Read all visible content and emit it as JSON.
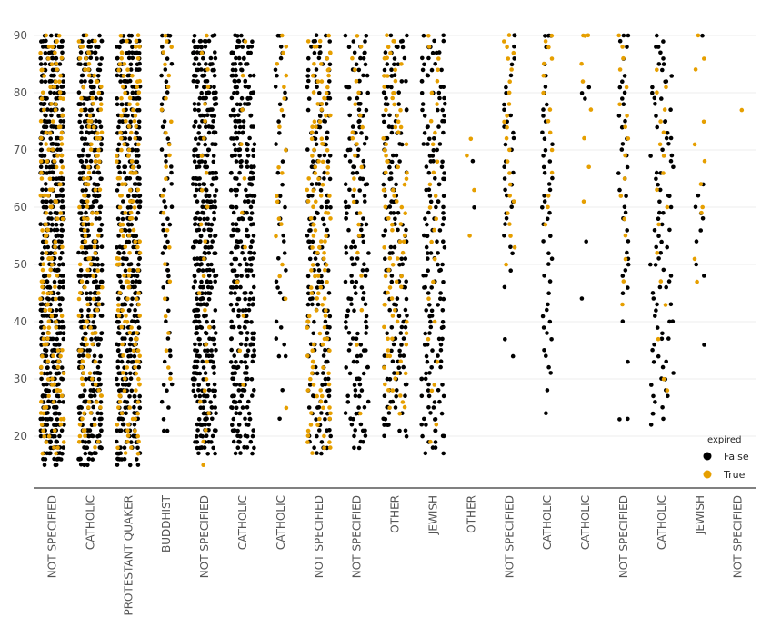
{
  "chart_data": {
    "type": "scatter",
    "subtype": "strip",
    "title": "",
    "xlabel": "",
    "ylabel": "",
    "ylim": [
      11,
      93
    ],
    "yticks": [
      20,
      30,
      40,
      50,
      60,
      70,
      80,
      90
    ],
    "grid": "horizontal",
    "categories": [
      "NOT SPECIFIED",
      "CATHOLIC",
      "PROTESTANT QUAKER",
      "BUDDHIST",
      "NOT SPECIFIED",
      "CATHOLIC",
      "CATHOLIC",
      "NOT SPECIFIED",
      "NOT SPECIFIED",
      "OTHER",
      "JEWISH",
      "OTHER",
      "NOT SPECIFIED",
      "CATHOLIC",
      "CATHOLIC",
      "NOT SPECIFIED",
      "CATHOLIC",
      "JEWISH",
      "NOT SPECIFIED"
    ],
    "legend": {
      "title": "expired",
      "position": "bottom-right",
      "entries": [
        {
          "label": "False",
          "color": "#000000"
        },
        {
          "label": "True",
          "color": "#E69F00"
        }
      ]
    },
    "series": [
      {
        "name": "False",
        "color": "#000000",
        "points_by_category": [
          {
            "range": [
              15,
              90
            ],
            "count": 520
          },
          {
            "range": [
              15,
              90
            ],
            "count": 440
          },
          {
            "range": [
              15,
              90
            ],
            "count": 420
          },
          {
            "values": [
              21,
              21,
              23,
              25,
              26,
              28,
              29,
              29,
              31,
              33,
              34,
              35,
              37,
              38,
              40,
              42,
              44,
              46,
              47,
              48,
              49,
              49,
              50,
              52,
              53,
              53,
              54,
              55,
              56,
              57,
              57,
              58,
              59,
              60,
              60,
              61,
              62,
              63,
              64,
              65,
              66,
              67,
              68,
              69,
              70,
              71,
              72,
              73,
              74,
              75,
              77,
              78,
              79,
              80,
              81,
              82,
              83,
              84,
              85,
              86,
              87,
              88,
              89,
              90,
              90,
              90
            ]
          },
          {
            "range": [
              17,
              90
            ],
            "count": 420
          },
          {
            "range": [
              17,
              90
            ],
            "count": 360
          },
          {
            "values": [
              23,
              28,
              34,
              34,
              36,
              37,
              39,
              40,
              44,
              45,
              46,
              47,
              49,
              51,
              52,
              54,
              55,
              57,
              58,
              60,
              61,
              62,
              64,
              66,
              68,
              70,
              71,
              73,
              75,
              76,
              78,
              79,
              80,
              81,
              83,
              84,
              86,
              87,
              88,
              90,
              90
            ]
          },
          {
            "range": [
              17,
              90
            ],
            "count": 200
          },
          {
            "range": [
              18,
              90
            ],
            "count": 170
          },
          {
            "range": [
              20,
              90
            ],
            "count": 170
          },
          {
            "range": [
              17,
              90
            ],
            "count": 170
          },
          {
            "values": [
              60,
              68
            ]
          },
          {
            "values": [
              34,
              37,
              46,
              49,
              52,
              53,
              55,
              57,
              58,
              59,
              60,
              61,
              62,
              63,
              64,
              65,
              66,
              67,
              68,
              70,
              71,
              72,
              73,
              74,
              75,
              76,
              77,
              78,
              80,
              81,
              83,
              85,
              86,
              88,
              90,
              90,
              90
            ]
          },
          {
            "values": [
              24,
              28,
              31,
              32,
              34,
              35,
              37,
              38,
              39,
              40,
              41,
              42,
              43,
              45,
              47,
              48,
              50,
              51,
              52,
              54,
              55,
              57,
              58,
              59,
              60,
              61,
              62,
              63,
              64,
              65,
              66,
              67,
              68,
              69,
              70,
              71,
              72,
              73,
              75,
              76,
              77,
              78,
              80,
              81,
              83,
              85,
              88,
              90,
              90,
              90,
              90
            ]
          },
          {
            "values": [
              44,
              54,
              79,
              80,
              81
            ]
          },
          {
            "values": [
              23,
              23,
              33,
              40,
              45,
              46,
              48,
              49,
              50,
              51,
              52,
              54,
              56,
              58,
              58,
              59,
              60,
              62,
              63,
              65,
              66,
              67,
              69,
              70,
              71,
              72,
              74,
              75,
              76,
              78,
              79,
              80,
              81,
              82,
              83,
              86,
              88,
              89,
              90,
              90
            ]
          },
          {
            "range": [
              22,
              90
            ],
            "count": 90
          },
          {
            "values": [
              36,
              48,
              50,
              54,
              56,
              58,
              59,
              60,
              62,
              64,
              90
            ]
          },
          {
            "values": []
          }
        ]
      },
      {
        "name": "True",
        "color": "#E69F00",
        "points_by_category": [
          {
            "range": [
              17,
              90
            ],
            "count": 160
          },
          {
            "range": [
              18,
              90
            ],
            "count": 130
          },
          {
            "range": [
              17,
              90
            ],
            "count": 150
          },
          {
            "values": [
              30,
              32,
              35,
              38,
              41,
              44,
              47,
              50,
              53,
              56,
              59,
              62,
              65,
              67,
              69,
              71,
              73,
              75,
              77,
              79,
              81,
              83,
              85,
              87,
              88,
              89,
              90
            ]
          },
          {
            "values": [
              15,
              19,
              21,
              24,
              26,
              28,
              30,
              33,
              36,
              39,
              42,
              45,
              48,
              51,
              54,
              57,
              60,
              63,
              66,
              69,
              72,
              75,
              78,
              81,
              84,
              87,
              90
            ]
          },
          {
            "values": [
              29,
              35,
              41,
              47,
              53,
              59,
              65,
              71,
              77,
              83,
              89
            ]
          },
          {
            "values": [
              25,
              44,
              48,
              50,
              55,
              57,
              58,
              61,
              62,
              66,
              67,
              70,
              74,
              77,
              79,
              81,
              83,
              85,
              87,
              88,
              90
            ]
          },
          {
            "range": [
              17,
              90
            ],
            "count": 130
          },
          {
            "values": [
              24,
              36,
              42,
              48,
              52,
              55,
              57,
              59,
              61,
              63,
              65,
              67,
              69,
              71,
              72,
              73,
              74,
              76,
              78,
              80,
              82,
              84,
              86,
              88,
              90
            ]
          },
          {
            "range": [
              24,
              90
            ],
            "count": 90
          },
          {
            "values": [
              19,
              22,
              28,
              29,
              33,
              37,
              40,
              44,
              47,
              51,
              54,
              56,
              58,
              60,
              62,
              64,
              66,
              68,
              71,
              73,
              75,
              78,
              80,
              82,
              84,
              86,
              88,
              90
            ]
          },
          {
            "values": [
              55,
              63,
              69,
              72
            ]
          },
          {
            "values": [
              50,
              53,
              55,
              57,
              59,
              61,
              62,
              64,
              66,
              68,
              70,
              72,
              74,
              75,
              76,
              78,
              80,
              82,
              84,
              86,
              87,
              88,
              89,
              90
            ]
          },
          {
            "values": [
              57,
              60,
              62,
              66,
              70,
              73,
              75,
              77,
              80,
              83,
              85,
              86,
              88,
              89,
              90
            ]
          },
          {
            "values": [
              61,
              67,
              72,
              77,
              82,
              85,
              90,
              90,
              90
            ]
          },
          {
            "values": [
              43,
              47,
              51,
              55,
              58,
              62,
              65,
              69,
              72,
              74,
              76,
              78,
              81,
              84,
              86,
              88,
              90
            ]
          },
          {
            "values": [
              28,
              30,
              37,
              43,
              47,
              52,
              57,
              60,
              63,
              66,
              69,
              71,
              73,
              75,
              77,
              80,
              81,
              84
            ]
          },
          {
            "values": [
              47,
              51,
              59,
              60,
              64,
              68,
              71,
              75,
              84,
              86,
              90
            ]
          },
          {
            "values": [
              77
            ]
          }
        ]
      }
    ]
  }
}
